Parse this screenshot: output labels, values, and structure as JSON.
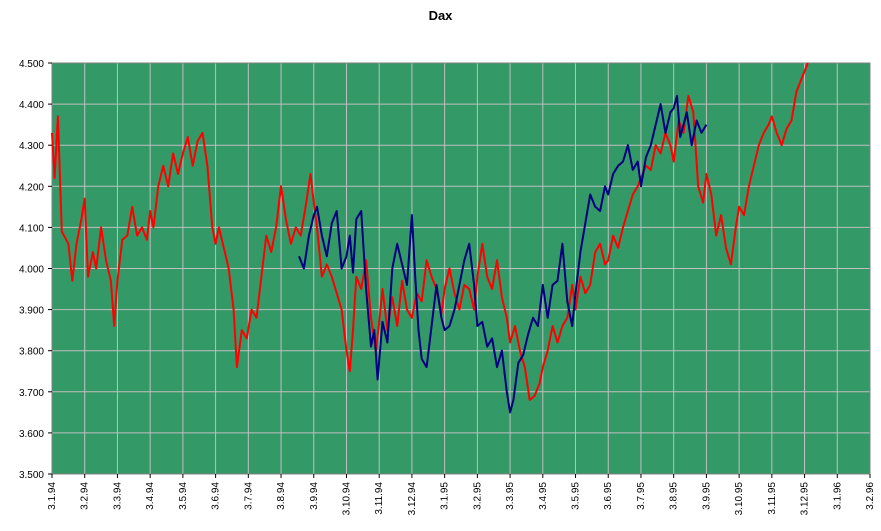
{
  "chart_data": {
    "type": "line",
    "title": "Dax",
    "xlabel": "",
    "ylabel": "",
    "ylim": [
      3500,
      4500
    ],
    "y_ticks": [
      "3.500",
      "3.600",
      "3.700",
      "3.800",
      "3.900",
      "4.000",
      "4.100",
      "4.200",
      "4.300",
      "4.400",
      "4.500"
    ],
    "y_tick_values": [
      3500,
      3600,
      3700,
      3800,
      3900,
      4000,
      4100,
      4200,
      4300,
      4400,
      4500
    ],
    "x_ticks": [
      "3.1.94",
      "3.2.94",
      "3.3.94",
      "3.4.94",
      "3.5.94",
      "3.6.94",
      "3.7.94",
      "3.8.94",
      "3.9.94",
      "3.10.94",
      "3.11.94",
      "3.12.94",
      "3.1.95",
      "3.2.95",
      "3.3.95",
      "3.4.95",
      "3.5.95",
      "3.6.95",
      "3.7.95",
      "3.8.95",
      "3.9.95",
      "3.10.95",
      "3.11.95",
      "3.12.95",
      "3.1.96",
      "3.2.96"
    ],
    "grid": true,
    "plot_background": "#339966",
    "grid_color": "#c0c0c0",
    "series": [
      {
        "color": "#ff0000",
        "points": [
          [
            0,
            4330
          ],
          [
            0.08,
            4220
          ],
          [
            0.18,
            4370
          ],
          [
            0.3,
            4090
          ],
          [
            0.5,
            4060
          ],
          [
            0.62,
            3970
          ],
          [
            0.75,
            4060
          ],
          [
            0.9,
            4120
          ],
          [
            1.0,
            4170
          ],
          [
            1.1,
            3980
          ],
          [
            1.25,
            4040
          ],
          [
            1.35,
            4000
          ],
          [
            1.5,
            4100
          ],
          [
            1.65,
            4020
          ],
          [
            1.8,
            3970
          ],
          [
            1.9,
            3860
          ],
          [
            2.0,
            3970
          ],
          [
            2.15,
            4070
          ],
          [
            2.3,
            4080
          ],
          [
            2.45,
            4150
          ],
          [
            2.6,
            4080
          ],
          [
            2.75,
            4100
          ],
          [
            2.9,
            4070
          ],
          [
            3.0,
            4140
          ],
          [
            3.1,
            4100
          ],
          [
            3.25,
            4200
          ],
          [
            3.4,
            4250
          ],
          [
            3.55,
            4200
          ],
          [
            3.7,
            4280
          ],
          [
            3.85,
            4230
          ],
          [
            4.0,
            4280
          ],
          [
            4.15,
            4320
          ],
          [
            4.3,
            4250
          ],
          [
            4.45,
            4310
          ],
          [
            4.6,
            4330
          ],
          [
            4.75,
            4250
          ],
          [
            4.9,
            4100
          ],
          [
            5.0,
            4060
          ],
          [
            5.1,
            4100
          ],
          [
            5.25,
            4050
          ],
          [
            5.4,
            4000
          ],
          [
            5.55,
            3900
          ],
          [
            5.65,
            3760
          ],
          [
            5.8,
            3850
          ],
          [
            5.95,
            3830
          ],
          [
            6.1,
            3900
          ],
          [
            6.25,
            3880
          ],
          [
            6.4,
            3980
          ],
          [
            6.55,
            4080
          ],
          [
            6.7,
            4040
          ],
          [
            6.85,
            4100
          ],
          [
            7.0,
            4200
          ],
          [
            7.15,
            4120
          ],
          [
            7.3,
            4060
          ],
          [
            7.45,
            4100
          ],
          [
            7.6,
            4080
          ],
          [
            7.75,
            4150
          ],
          [
            7.9,
            4230
          ],
          [
            8.0,
            4160
          ],
          [
            8.1,
            4100
          ],
          [
            8.25,
            3980
          ],
          [
            8.4,
            4010
          ],
          [
            8.55,
            3980
          ],
          [
            8.7,
            3940
          ],
          [
            8.85,
            3900
          ],
          [
            9.0,
            3800
          ],
          [
            9.1,
            3750
          ],
          [
            9.2,
            3850
          ],
          [
            9.3,
            3980
          ],
          [
            9.45,
            3950
          ],
          [
            9.6,
            4020
          ],
          [
            9.75,
            3880
          ],
          [
            9.9,
            3800
          ],
          [
            10.0,
            3870
          ],
          [
            10.1,
            3950
          ],
          [
            10.25,
            3850
          ],
          [
            10.4,
            3930
          ],
          [
            10.55,
            3860
          ],
          [
            10.7,
            3970
          ],
          [
            10.85,
            3900
          ],
          [
            11.0,
            3880
          ],
          [
            11.15,
            3940
          ],
          [
            11.3,
            3920
          ],
          [
            11.45,
            4020
          ],
          [
            11.6,
            3980
          ],
          [
            11.75,
            3950
          ],
          [
            11.9,
            3890
          ],
          [
            12.0,
            3950
          ],
          [
            12.15,
            4000
          ],
          [
            12.3,
            3940
          ],
          [
            12.45,
            3900
          ],
          [
            12.6,
            3960
          ],
          [
            12.75,
            3950
          ],
          [
            12.9,
            3900
          ],
          [
            13.0,
            3980
          ],
          [
            13.15,
            4060
          ],
          [
            13.3,
            3980
          ],
          [
            13.45,
            3950
          ],
          [
            13.6,
            4020
          ],
          [
            13.75,
            3930
          ],
          [
            13.9,
            3880
          ],
          [
            14.0,
            3820
          ],
          [
            14.15,
            3860
          ],
          [
            14.3,
            3800
          ],
          [
            14.45,
            3760
          ],
          [
            14.6,
            3680
          ],
          [
            14.75,
            3690
          ],
          [
            14.9,
            3720
          ],
          [
            15.0,
            3760
          ],
          [
            15.15,
            3800
          ],
          [
            15.3,
            3860
          ],
          [
            15.45,
            3820
          ],
          [
            15.6,
            3860
          ],
          [
            15.75,
            3880
          ],
          [
            15.9,
            3960
          ],
          [
            16.0,
            3900
          ],
          [
            16.15,
            3980
          ],
          [
            16.3,
            3940
          ],
          [
            16.45,
            3960
          ],
          [
            16.6,
            4040
          ],
          [
            16.75,
            4060
          ],
          [
            16.9,
            4010
          ],
          [
            17.0,
            4020
          ],
          [
            17.15,
            4080
          ],
          [
            17.3,
            4050
          ],
          [
            17.45,
            4100
          ],
          [
            17.6,
            4140
          ],
          [
            17.75,
            4180
          ],
          [
            17.9,
            4200
          ],
          [
            18.0,
            4220
          ],
          [
            18.15,
            4250
          ],
          [
            18.3,
            4240
          ],
          [
            18.45,
            4300
          ],
          [
            18.6,
            4280
          ],
          [
            18.75,
            4330
          ],
          [
            18.9,
            4300
          ],
          [
            19.0,
            4260
          ],
          [
            19.15,
            4360
          ],
          [
            19.3,
            4330
          ],
          [
            19.45,
            4420
          ],
          [
            19.6,
            4380
          ],
          [
            19.75,
            4200
          ],
          [
            19.9,
            4160
          ],
          [
            20.0,
            4230
          ],
          [
            20.15,
            4180
          ],
          [
            20.3,
            4080
          ],
          [
            20.45,
            4130
          ],
          [
            20.6,
            4050
          ],
          [
            20.75,
            4010
          ],
          [
            20.9,
            4100
          ],
          [
            21.0,
            4150
          ],
          [
            21.15,
            4130
          ],
          [
            21.3,
            4200
          ],
          [
            21.45,
            4250
          ],
          [
            21.6,
            4300
          ],
          [
            21.75,
            4330
          ],
          [
            21.9,
            4350
          ],
          [
            22.0,
            4370
          ],
          [
            22.15,
            4330
          ],
          [
            22.3,
            4300
          ],
          [
            22.45,
            4340
          ],
          [
            22.6,
            4360
          ],
          [
            22.75,
            4430
          ],
          [
            22.9,
            4460
          ],
          [
            23.0,
            4480
          ],
          [
            23.1,
            4500
          ]
        ]
      },
      {
        "color": "#000080",
        "points": [
          [
            7.55,
            4030
          ],
          [
            7.7,
            4000
          ],
          [
            7.85,
            4080
          ],
          [
            8.0,
            4130
          ],
          [
            8.1,
            4150
          ],
          [
            8.25,
            4080
          ],
          [
            8.4,
            4030
          ],
          [
            8.55,
            4110
          ],
          [
            8.7,
            4140
          ],
          [
            8.85,
            4000
          ],
          [
            9.0,
            4030
          ],
          [
            9.1,
            4080
          ],
          [
            9.2,
            3990
          ],
          [
            9.3,
            4120
          ],
          [
            9.45,
            4140
          ],
          [
            9.6,
            3950
          ],
          [
            9.75,
            3810
          ],
          [
            9.85,
            3850
          ],
          [
            9.95,
            3730
          ],
          [
            10.1,
            3870
          ],
          [
            10.25,
            3820
          ],
          [
            10.4,
            4000
          ],
          [
            10.55,
            4060
          ],
          [
            10.7,
            4010
          ],
          [
            10.85,
            3960
          ],
          [
            11.0,
            4130
          ],
          [
            11.1,
            3980
          ],
          [
            11.2,
            3850
          ],
          [
            11.3,
            3780
          ],
          [
            11.45,
            3760
          ],
          [
            11.6,
            3860
          ],
          [
            11.75,
            3960
          ],
          [
            11.9,
            3880
          ],
          [
            12.0,
            3850
          ],
          [
            12.15,
            3860
          ],
          [
            12.3,
            3900
          ],
          [
            12.45,
            3960
          ],
          [
            12.6,
            4020
          ],
          [
            12.75,
            4060
          ],
          [
            12.9,
            3960
          ],
          [
            13.0,
            3860
          ],
          [
            13.15,
            3870
          ],
          [
            13.3,
            3810
          ],
          [
            13.45,
            3830
          ],
          [
            13.6,
            3760
          ],
          [
            13.75,
            3800
          ],
          [
            13.9,
            3700
          ],
          [
            14.0,
            3650
          ],
          [
            14.1,
            3680
          ],
          [
            14.25,
            3770
          ],
          [
            14.4,
            3790
          ],
          [
            14.55,
            3840
          ],
          [
            14.7,
            3880
          ],
          [
            14.85,
            3860
          ],
          [
            15.0,
            3960
          ],
          [
            15.15,
            3880
          ],
          [
            15.3,
            3960
          ],
          [
            15.45,
            3970
          ],
          [
            15.6,
            4060
          ],
          [
            15.75,
            3920
          ],
          [
            15.9,
            3860
          ],
          [
            16.0,
            3940
          ],
          [
            16.15,
            4040
          ],
          [
            16.3,
            4110
          ],
          [
            16.45,
            4180
          ],
          [
            16.6,
            4150
          ],
          [
            16.75,
            4140
          ],
          [
            16.9,
            4200
          ],
          [
            17.0,
            4180
          ],
          [
            17.15,
            4230
          ],
          [
            17.3,
            4250
          ],
          [
            17.45,
            4260
          ],
          [
            17.6,
            4300
          ],
          [
            17.75,
            4240
          ],
          [
            17.9,
            4260
          ],
          [
            18.0,
            4200
          ],
          [
            18.15,
            4270
          ],
          [
            18.3,
            4300
          ],
          [
            18.45,
            4350
          ],
          [
            18.6,
            4400
          ],
          [
            18.75,
            4330
          ],
          [
            18.9,
            4380
          ],
          [
            19.0,
            4390
          ],
          [
            19.1,
            4420
          ],
          [
            19.2,
            4320
          ],
          [
            19.3,
            4350
          ],
          [
            19.4,
            4380
          ],
          [
            19.55,
            4300
          ],
          [
            19.7,
            4360
          ],
          [
            19.85,
            4330
          ],
          [
            20.0,
            4350
          ]
        ]
      }
    ]
  }
}
